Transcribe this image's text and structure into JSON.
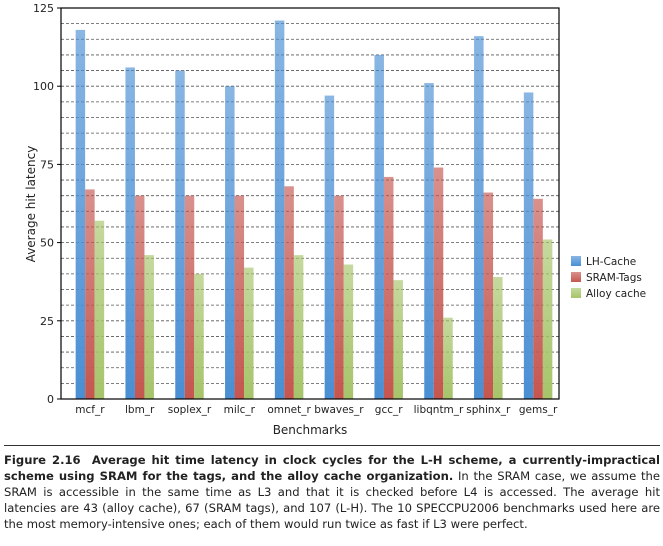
{
  "chart_data": {
    "type": "bar",
    "title": "",
    "xlabel": "Benchmarks",
    "ylabel": "Average hit latency",
    "ylim": [
      0,
      125
    ],
    "yticks": [
      0,
      25,
      50,
      75,
      100,
      125
    ],
    "grid": true,
    "grid_step": 5,
    "legend_position": "right",
    "categories": [
      "mcf_r",
      "lbm_r",
      "soplex_r",
      "milc_r",
      "omnet_r",
      "bwaves_r",
      "gcc_r",
      "libqntm_r",
      "sphinx_r",
      "gems_r"
    ],
    "series": [
      {
        "name": "LH-Cache",
        "color": "#4a8fd4",
        "values": [
          118,
          106,
          105,
          100,
          121,
          97,
          110,
          101,
          116,
          98
        ]
      },
      {
        "name": "SRAM-Tags",
        "color": "#c5564f",
        "values": [
          67,
          65,
          65,
          65,
          68,
          65,
          71,
          74,
          66,
          64
        ]
      },
      {
        "name": "Alloy cache",
        "color": "#a6c46a",
        "values": [
          57,
          46,
          40,
          42,
          46,
          43,
          38,
          26,
          39,
          51
        ]
      }
    ]
  },
  "caption": {
    "label": "Figure 2.16",
    "bold": "Average hit time latency in clock cycles for the L-H scheme, a currently-impractical scheme using SRAM for the tags, and the alloy cache organization.",
    "text": "In the SRAM case, we assume the SRAM is accessible in the same time as L3 and that it is checked before L4 is accessed. The average hit latencies are 43 (alloy cache), 67 (SRAM tags), and 107 (L-H). The 10 SPECCPU2006 benchmarks used here are the most memory-intensive ones; each of them would run twice as fast if L3 were perfect."
  }
}
